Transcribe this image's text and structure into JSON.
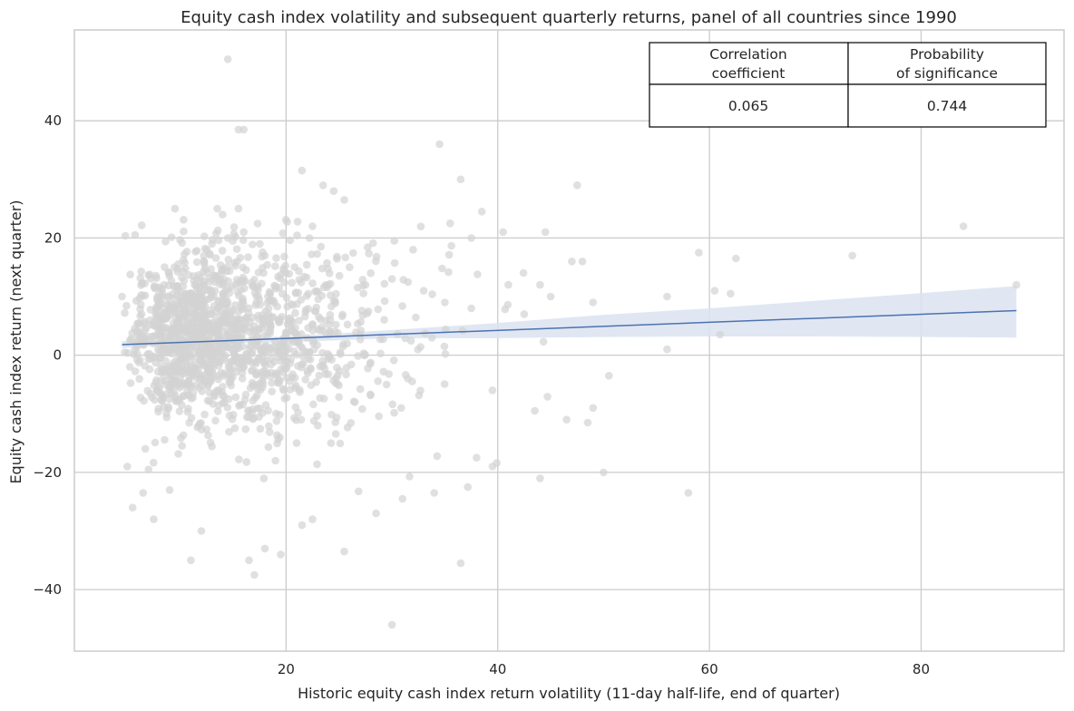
{
  "chart_data": {
    "type": "scatter",
    "title": "Equity cash index volatility and subsequent quarterly returns, panel of all countries since 1990",
    "xlabel": "Historic equity cash index return volatility (11-day half-life, end of quarter)",
    "ylabel": "Equity cash index return (next quarter)",
    "xlim": [
      0,
      93.5
    ],
    "ylim": [
      -50.5,
      55.5
    ],
    "xticks": [
      20,
      40,
      60,
      80
    ],
    "yticks": [
      -40,
      -20,
      0,
      20,
      40
    ],
    "xtick_labels": [
      "20",
      "40",
      "60",
      "80"
    ],
    "ytick_labels": [
      "−40",
      "−20",
      "0",
      "20",
      "40"
    ],
    "grid": true,
    "point_color": "#d3d3d3",
    "line_color": "#4c72b0",
    "band_color": "#dbe3f1",
    "regression": {
      "x": [
        4.5,
        89
      ],
      "y": [
        1.8,
        7.6
      ]
    },
    "confidence_band": {
      "x": [
        4.5,
        10,
        20,
        30,
        40,
        50,
        60,
        70,
        80,
        89
      ],
      "lower": [
        1.2,
        1.9,
        2.2,
        2.9,
        2.9,
        3.1,
        3.2,
        3.2,
        3.1,
        3.0
      ],
      "upper": [
        2.4,
        2.6,
        3.2,
        4.3,
        5.5,
        6.9,
        8.0,
        9.3,
        10.6,
        11.8
      ]
    },
    "points": {
      "x": [
        14.5,
        16.0,
        15.5,
        34.5,
        21.5,
        36.5,
        23.5,
        24.5,
        25.5,
        9.5,
        13.5,
        15.5,
        14.0,
        22.5,
        35.5,
        38.5,
        37.5,
        40.5,
        44.5,
        47.5,
        47.0,
        48.0,
        42.5,
        56.0,
        59.0,
        62.5,
        61.0,
        73.5,
        84.0,
        89.0,
        50.5,
        49.0,
        46.5,
        44.0,
        39.5,
        38.0,
        43.5,
        48.5,
        44.0,
        39.5,
        50.0,
        58.0,
        36.5,
        34.0,
        25.5,
        30.0,
        31.0,
        21.5,
        22.5,
        19.5,
        17.0,
        16.5,
        18.0,
        12.0,
        11.0,
        28.5,
        5.0,
        7.5,
        6.5,
        5.5,
        7.0,
        9.0,
        4.5,
        12.5,
        13.0,
        14.5,
        16.0,
        18.0,
        20.0,
        24.0,
        26.0,
        30.0,
        32.0,
        33.0,
        35.0,
        37.5,
        41.0,
        45.0,
        49.0,
        56.0,
        60.5,
        62.0,
        27.5,
        28.0,
        29.5,
        31.5,
        26.5,
        23.0,
        21.0,
        19.0
      ],
      "y": [
        50.5,
        38.5,
        38.5,
        36.0,
        31.5,
        30.0,
        29.0,
        28.0,
        26.5,
        25.0,
        25.0,
        25.0,
        24.0,
        22.0,
        22.5,
        24.5,
        20.0,
        21.0,
        21.0,
        29.0,
        16.0,
        16.0,
        7.0,
        10.0,
        17.5,
        16.5,
        3.5,
        17.0,
        22.0,
        12.0,
        -3.5,
        -9.0,
        -11.0,
        -21.0,
        -19.0,
        -17.5,
        -9.5,
        -11.5,
        12.0,
        -6.0,
        -20.0,
        -23.5,
        -35.5,
        -23.5,
        -33.5,
        -46.0,
        -24.5,
        -29.0,
        -28.0,
        -34.0,
        -37.5,
        -35.0,
        -33.0,
        -30.0,
        -35.0,
        -27.0,
        -19.0,
        -28.0,
        -23.5,
        -26.0,
        -19.5,
        -23.0,
        10.0,
        18.0,
        19.0,
        20.0,
        21.0,
        17.0,
        14.0,
        12.0,
        15.0,
        13.0,
        18.0,
        11.0,
        9.0,
        8.0,
        12.0,
        10.0,
        9.0,
        1.0,
        11.0,
        10.5,
        12.0,
        14.0,
        -5.0,
        -4.0,
        -8.0,
        -12.0,
        -15.0,
        -18.0
      ]
    },
    "table": {
      "headers": [
        "Correlation\ncoefficient",
        "Probability\nof significance"
      ],
      "values": [
        "0.065",
        "0.744"
      ]
    }
  }
}
